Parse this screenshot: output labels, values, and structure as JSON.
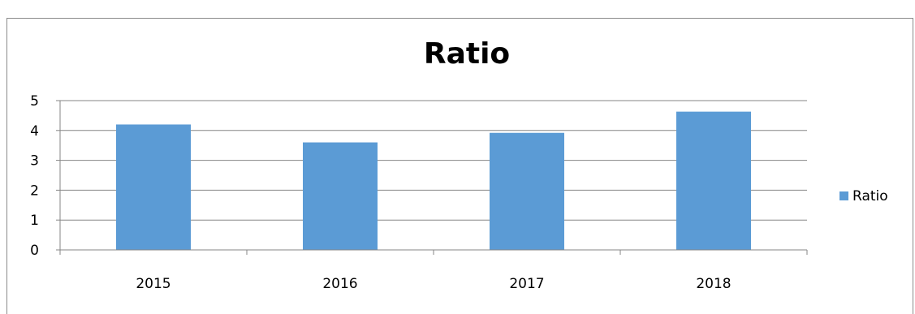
{
  "chart_data": {
    "type": "bar",
    "title": "Ratio",
    "categories": [
      "2015",
      "2016",
      "2017",
      "2018"
    ],
    "series": [
      {
        "name": "Ratio",
        "values": [
          4.2,
          3.6,
          3.92,
          4.63
        ],
        "color": "#5B9BD5"
      }
    ],
    "ylim": [
      0,
      5
    ],
    "yticks": [
      "0",
      "1",
      "2",
      "3",
      "4",
      "5"
    ],
    "grid": true,
    "gridColor": "#868686",
    "legend_position": "right"
  }
}
